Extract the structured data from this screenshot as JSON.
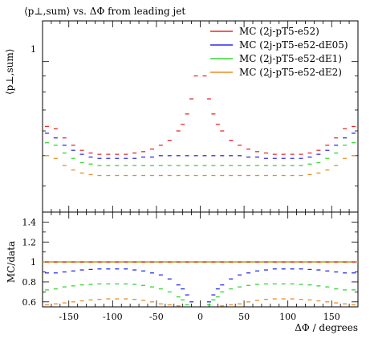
{
  "chart_data": [
    {
      "type": "scatter",
      "title": "⟨p⊥,sum⟩ vs. ΔΦ from leading jet",
      "ylabel": "⟨p⊥,sum⟩",
      "xlabel": "",
      "y_scale": "log",
      "xlim": [
        -180,
        180
      ],
      "ylim": [
        0.33,
        1.35
      ],
      "y_tick_labels": [
        {
          "value": 1,
          "label": "1"
        }
      ],
      "legend_placement": "top-right",
      "series": [
        {
          "name": "MC (2j-pT5-e52)",
          "color": "#e8282b",
          "x": [
            -175,
            -165,
            -155,
            -145,
            -135,
            -125,
            -115,
            -105,
            -95,
            -85,
            -75,
            -65,
            -55,
            -45,
            -35,
            -25,
            -20,
            -15,
            -10,
            -5,
            5,
            10,
            15,
            20,
            25,
            35,
            45,
            55,
            65,
            75,
            85,
            95,
            105,
            115,
            125,
            135,
            145,
            155,
            165,
            175
          ],
          "y": [
            0.62,
            0.61,
            0.57,
            0.54,
            0.52,
            0.51,
            0.505,
            0.505,
            0.505,
            0.505,
            0.51,
            0.515,
            0.525,
            0.54,
            0.56,
            0.6,
            0.63,
            0.68,
            0.76,
            0.9,
            0.9,
            0.76,
            0.68,
            0.63,
            0.6,
            0.56,
            0.54,
            0.525,
            0.515,
            0.51,
            0.505,
            0.505,
            0.505,
            0.505,
            0.51,
            0.52,
            0.54,
            0.57,
            0.61,
            0.62
          ]
        },
        {
          "name": "MC (2j-pT5-e52-dE05)",
          "color": "#2b2be8",
          "x": [
            -175,
            -165,
            -155,
            -145,
            -135,
            -125,
            -115,
            -105,
            -95,
            -85,
            -75,
            -65,
            -55,
            -45,
            -35,
            -25,
            -15,
            -5,
            5,
            15,
            25,
            35,
            45,
            55,
            65,
            75,
            85,
            95,
            105,
            115,
            125,
            135,
            145,
            155,
            165,
            175
          ],
          "y": [
            0.59,
            0.57,
            0.54,
            0.52,
            0.505,
            0.495,
            0.49,
            0.49,
            0.49,
            0.49,
            0.49,
            0.495,
            0.495,
            0.5,
            0.5,
            0.5,
            0.5,
            0.5,
            0.5,
            0.5,
            0.5,
            0.5,
            0.5,
            0.495,
            0.495,
            0.49,
            0.49,
            0.49,
            0.49,
            0.49,
            0.495,
            0.505,
            0.52,
            0.54,
            0.57,
            0.59
          ]
        },
        {
          "name": "MC (2j-pT5-e52-dE1)",
          "color": "#33d633",
          "x": [
            -175,
            -165,
            -155,
            -145,
            -135,
            -125,
            -115,
            -105,
            -95,
            -85,
            -75,
            -65,
            -55,
            -45,
            -35,
            -25,
            -15,
            -5,
            5,
            15,
            25,
            35,
            45,
            55,
            65,
            75,
            85,
            95,
            105,
            115,
            125,
            135,
            145,
            155,
            165,
            175
          ],
          "y": [
            0.55,
            0.54,
            0.51,
            0.49,
            0.475,
            0.47,
            0.465,
            0.465,
            0.465,
            0.465,
            0.465,
            0.465,
            0.465,
            0.465,
            0.465,
            0.465,
            0.465,
            0.465,
            0.465,
            0.465,
            0.465,
            0.465,
            0.465,
            0.465,
            0.465,
            0.465,
            0.465,
            0.465,
            0.465,
            0.465,
            0.47,
            0.475,
            0.49,
            0.51,
            0.54,
            0.55
          ]
        },
        {
          "name": "MC (2j-pT5-e52-dE2)",
          "color": "#ee8a22",
          "x": [
            -175,
            -165,
            -155,
            -145,
            -135,
            -125,
            -115,
            -105,
            -95,
            -85,
            -75,
            -65,
            -55,
            -45,
            -35,
            -25,
            -15,
            -5,
            5,
            15,
            25,
            35,
            45,
            55,
            65,
            75,
            85,
            95,
            105,
            115,
            125,
            135,
            145,
            155,
            165,
            175
          ],
          "y": [
            0.5,
            0.49,
            0.465,
            0.45,
            0.44,
            0.435,
            0.432,
            0.432,
            0.432,
            0.432,
            0.432,
            0.432,
            0.432,
            0.432,
            0.432,
            0.432,
            0.432,
            0.432,
            0.432,
            0.432,
            0.432,
            0.432,
            0.432,
            0.432,
            0.432,
            0.432,
            0.432,
            0.432,
            0.432,
            0.432,
            0.435,
            0.44,
            0.45,
            0.465,
            0.49,
            0.5
          ]
        }
      ]
    },
    {
      "type": "scatter",
      "ylabel": "MC/data",
      "xlabel": "ΔΦ / degrees",
      "xlim": [
        -180,
        180
      ],
      "ylim": [
        0.55,
        1.5
      ],
      "y_ticks": [
        0.6,
        0.8,
        1,
        1.2,
        1.4
      ],
      "x_ticks": [
        -150,
        -100,
        -50,
        0,
        50,
        100,
        150
      ],
      "reference_line": {
        "y": 1,
        "color": "#b5a521"
      },
      "series": [
        {
          "name": "MC (2j-pT5-e52)",
          "color": "#e8282b",
          "x": [
            -175,
            -165,
            -155,
            -145,
            -135,
            -125,
            -115,
            -105,
            -95,
            -85,
            -75,
            -65,
            -55,
            -45,
            -35,
            -25,
            -15,
            -5,
            5,
            15,
            25,
            35,
            45,
            55,
            65,
            75,
            85,
            95,
            105,
            115,
            125,
            135,
            145,
            155,
            165,
            175
          ],
          "y": [
            1,
            1,
            1,
            1,
            1,
            1,
            1,
            1,
            1,
            1,
            1,
            1,
            1,
            1,
            1,
            1,
            1,
            1,
            1,
            1,
            1,
            1,
            1,
            1,
            1,
            1,
            1,
            1,
            1,
            1,
            1,
            1,
            1,
            1,
            1,
            1
          ]
        },
        {
          "name": "MC (2j-pT5-e52-dE05)",
          "color": "#2b2be8",
          "x": [
            -175,
            -165,
            -155,
            -145,
            -135,
            -125,
            -115,
            -105,
            -95,
            -85,
            -75,
            -65,
            -55,
            -45,
            -35,
            -25,
            -20,
            -15,
            -10,
            10,
            15,
            20,
            25,
            35,
            45,
            55,
            65,
            75,
            85,
            95,
            105,
            115,
            125,
            135,
            145,
            155,
            165,
            175
          ],
          "y": [
            0.89,
            0.89,
            0.9,
            0.91,
            0.92,
            0.925,
            0.93,
            0.93,
            0.93,
            0.93,
            0.92,
            0.91,
            0.89,
            0.87,
            0.83,
            0.77,
            0.73,
            0.67,
            0.6,
            0.6,
            0.67,
            0.73,
            0.77,
            0.83,
            0.87,
            0.89,
            0.91,
            0.92,
            0.93,
            0.93,
            0.93,
            0.93,
            0.925,
            0.92,
            0.91,
            0.9,
            0.89,
            0.89
          ]
        },
        {
          "name": "MC (2j-pT5-e52-dE1)",
          "color": "#33d633",
          "x": [
            -175,
            -165,
            -155,
            -145,
            -135,
            -125,
            -115,
            -105,
            -95,
            -85,
            -75,
            -65,
            -55,
            -45,
            -35,
            -25,
            -20,
            -15,
            10,
            15,
            20,
            25,
            35,
            45,
            55,
            65,
            75,
            85,
            95,
            105,
            115,
            125,
            135,
            145,
            155,
            165,
            175
          ],
          "y": [
            0.72,
            0.73,
            0.75,
            0.76,
            0.77,
            0.775,
            0.78,
            0.78,
            0.78,
            0.78,
            0.775,
            0.765,
            0.75,
            0.73,
            0.7,
            0.65,
            0.62,
            0.57,
            0.57,
            0.62,
            0.65,
            0.7,
            0.73,
            0.75,
            0.765,
            0.775,
            0.78,
            0.78,
            0.78,
            0.78,
            0.775,
            0.77,
            0.76,
            0.75,
            0.73,
            0.72,
            0.72
          ]
        },
        {
          "name": "MC (2j-pT5-e52-dE2)",
          "color": "#ee8a22",
          "x": [
            -175,
            -165,
            -155,
            -145,
            -135,
            -125,
            -115,
            -105,
            -95,
            -85,
            -75,
            -65,
            -55,
            -45,
            -35,
            -25,
            25,
            35,
            45,
            55,
            65,
            75,
            85,
            95,
            105,
            115,
            125,
            135,
            145,
            155,
            165,
            175
          ],
          "y": [
            0.57,
            0.58,
            0.59,
            0.6,
            0.61,
            0.62,
            0.625,
            0.63,
            0.63,
            0.63,
            0.625,
            0.615,
            0.6,
            0.58,
            0.57,
            0.56,
            0.56,
            0.57,
            0.58,
            0.6,
            0.615,
            0.625,
            0.63,
            0.63,
            0.63,
            0.625,
            0.62,
            0.61,
            0.6,
            0.59,
            0.58,
            0.57
          ]
        }
      ]
    }
  ]
}
